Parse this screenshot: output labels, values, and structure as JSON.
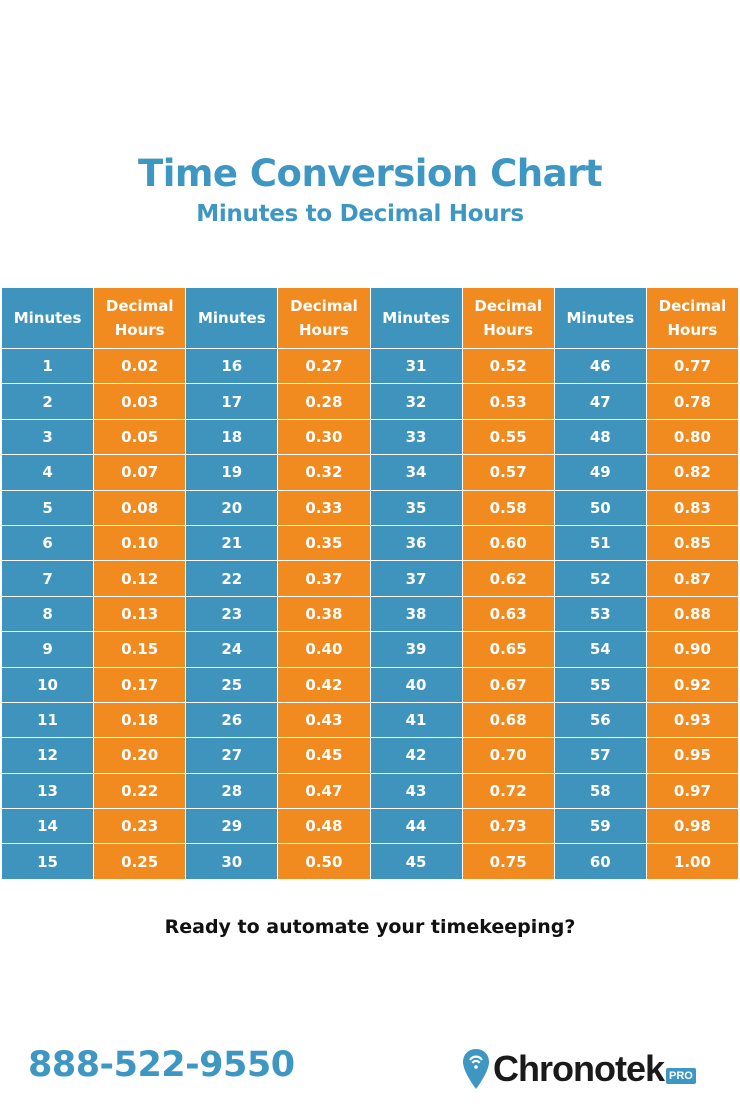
{
  "title": "Time Conversion Chart",
  "subtitle": "Minutes to Decimal Hours",
  "colors": {
    "minutes": "#3f94bd",
    "decimal": "#f28b1f",
    "title": "#3d97c2"
  },
  "headers": {
    "minutes": "Minutes",
    "decimal_line1": "Decimal",
    "decimal_line2": "Hours"
  },
  "rows": [
    [
      "1",
      "0.02",
      "16",
      "0.27",
      "31",
      "0.52",
      "46",
      "0.77"
    ],
    [
      "2",
      "0.03",
      "17",
      "0.28",
      "32",
      "0.53",
      "47",
      "0.78"
    ],
    [
      "3",
      "0.05",
      "18",
      "0.30",
      "33",
      "0.55",
      "48",
      "0.80"
    ],
    [
      "4",
      "0.07",
      "19",
      "0.32",
      "34",
      "0.57",
      "49",
      "0.82"
    ],
    [
      "5",
      "0.08",
      "20",
      "0.33",
      "35",
      "0.58",
      "50",
      "0.83"
    ],
    [
      "6",
      "0.10",
      "21",
      "0.35",
      "36",
      "0.60",
      "51",
      "0.85"
    ],
    [
      "7",
      "0.12",
      "22",
      "0.37",
      "37",
      "0.62",
      "52",
      "0.87"
    ],
    [
      "8",
      "0.13",
      "23",
      "0.38",
      "38",
      "0.63",
      "53",
      "0.88"
    ],
    [
      "9",
      "0.15",
      "24",
      "0.40",
      "39",
      "0.65",
      "54",
      "0.90"
    ],
    [
      "10",
      "0.17",
      "25",
      "0.42",
      "40",
      "0.67",
      "55",
      "0.92"
    ],
    [
      "11",
      "0.18",
      "26",
      "0.43",
      "41",
      "0.68",
      "56",
      "0.93"
    ],
    [
      "12",
      "0.20",
      "27",
      "0.45",
      "42",
      "0.70",
      "57",
      "0.95"
    ],
    [
      "13",
      "0.22",
      "28",
      "0.47",
      "43",
      "0.72",
      "58",
      "0.97"
    ],
    [
      "14",
      "0.23",
      "29",
      "0.48",
      "44",
      "0.73",
      "59",
      "0.98"
    ],
    [
      "15",
      "0.25",
      "30",
      "0.50",
      "45",
      "0.75",
      "60",
      "1.00"
    ]
  ],
  "cta": "Ready to automate your timekeeping?",
  "phone": "888-522-9550",
  "logo": {
    "text": "Chronotek",
    "badge": "PRO"
  }
}
